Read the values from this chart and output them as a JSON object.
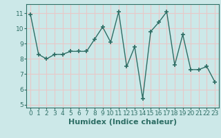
{
  "x": [
    0,
    1,
    2,
    3,
    4,
    5,
    6,
    7,
    8,
    9,
    10,
    11,
    12,
    13,
    14,
    15,
    16,
    17,
    18,
    19,
    20,
    21,
    22,
    23
  ],
  "y": [
    10.9,
    8.3,
    8.0,
    8.3,
    8.3,
    8.5,
    8.5,
    8.5,
    9.3,
    10.1,
    9.1,
    11.1,
    7.5,
    8.8,
    5.4,
    9.8,
    10.4,
    11.1,
    7.6,
    9.6,
    7.3,
    7.3,
    7.5,
    6.5
  ],
  "line_color": "#2e6e65",
  "marker": "+",
  "marker_size": 5,
  "marker_lw": 1.2,
  "bg_color": "#cce8e8",
  "grid_color": "#e8c8c8",
  "xlabel": "Humidex (Indice chaleur)",
  "ylim": [
    4.8,
    11.6
  ],
  "xlim": [
    -0.5,
    23.5
  ],
  "yticks": [
    5,
    6,
    7,
    8,
    9,
    10,
    11
  ],
  "xticks": [
    0,
    1,
    2,
    3,
    4,
    5,
    6,
    7,
    8,
    9,
    10,
    11,
    12,
    13,
    14,
    15,
    16,
    17,
    18,
    19,
    20,
    21,
    22,
    23
  ],
  "tick_label_fontsize": 6.5,
  "xlabel_fontsize": 8,
  "line_width": 1.0
}
